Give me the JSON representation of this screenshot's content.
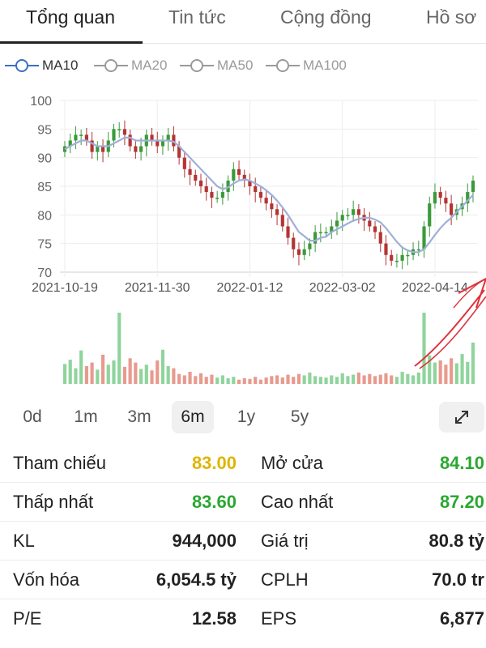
{
  "tabs": [
    {
      "label": "Tổng quan",
      "active": true
    },
    {
      "label": "Tin tức",
      "active": false
    },
    {
      "label": "Cộng đồng",
      "active": false
    },
    {
      "label": "Hồ sơ",
      "active": false
    }
  ],
  "ma_legend": [
    {
      "label": "MA10",
      "active": true
    },
    {
      "label": "MA20",
      "active": false
    },
    {
      "label": "MA50",
      "active": false
    },
    {
      "label": "MA100",
      "active": false
    }
  ],
  "colors": {
    "up": "#3a9a3a",
    "down": "#b43434",
    "ma_line": "#9fb0d8",
    "vol_up": "#8fd49c",
    "vol_down": "#e89a8e",
    "annotation": "#e0313a",
    "ma_active": "#3b6fc4",
    "ma_inactive": "#9a9a9a"
  },
  "chart_data": {
    "type": "candlestick",
    "y_ticks": [
      "100",
      "95",
      "90",
      "85",
      "80",
      "75",
      "70"
    ],
    "ylim": [
      70,
      100
    ],
    "x_ticks": [
      "2021-10-19",
      "2021-11-30",
      "2022-01-12",
      "2022-03-02",
      "2022-04-14"
    ],
    "close_series": [
      92,
      93,
      94,
      94,
      93,
      91,
      92,
      91,
      93,
      95,
      95,
      94,
      92,
      91,
      92,
      94,
      93,
      92,
      93,
      94,
      92,
      90,
      88,
      87,
      86,
      85,
      84,
      83,
      83,
      84,
      86,
      88,
      87,
      86,
      85,
      84,
      83,
      82,
      81,
      80,
      78,
      76,
      74,
      73,
      74,
      75,
      77,
      77,
      77,
      78,
      79,
      80,
      80,
      81,
      80,
      79,
      78,
      77,
      75,
      73,
      72,
      72,
      73,
      73,
      74,
      74,
      78,
      82,
      84,
      83,
      82,
      80,
      81,
      82,
      84,
      86
    ],
    "ma10_series": [
      91.5,
      92,
      92.5,
      93,
      93,
      92.5,
      92,
      92,
      92,
      92.5,
      93,
      93.5,
      93.5,
      93,
      93,
      93,
      93,
      93,
      93,
      93,
      92.8,
      92,
      91,
      90,
      89,
      88,
      87,
      86,
      85,
      84.5,
      84.8,
      85.5,
      86,
      86.2,
      86,
      85.5,
      85,
      84.3,
      83.5,
      82.5,
      81.3,
      80,
      78.5,
      77,
      76.3,
      75.5,
      75.5,
      76,
      76.2,
      77,
      77.5,
      78,
      78.5,
      79,
      79.3,
      79.5,
      79.5,
      79.2,
      78.7,
      77.7,
      76.5,
      75.3,
      74.3,
      73.8,
      73.5,
      73.5,
      74,
      75.2,
      76.5,
      77.7,
      78.7,
      79.5,
      80.5,
      81.5,
      82.5,
      83.5
    ],
    "volume_series": [
      0.28,
      0.34,
      0.22,
      0.47,
      0.25,
      0.3,
      0.2,
      0.41,
      0.27,
      0.33,
      1.0,
      0.24,
      0.36,
      0.3,
      0.21,
      0.27,
      0.19,
      0.33,
      0.48,
      0.25,
      0.22,
      0.14,
      0.12,
      0.17,
      0.11,
      0.15,
      0.1,
      0.13,
      0.09,
      0.12,
      0.08,
      0.1,
      0.06,
      0.08,
      0.07,
      0.1,
      0.06,
      0.09,
      0.11,
      0.12,
      0.09,
      0.13,
      0.1,
      0.14,
      0.12,
      0.16,
      0.11,
      0.1,
      0.09,
      0.12,
      0.1,
      0.15,
      0.11,
      0.13,
      0.16,
      0.12,
      0.14,
      0.11,
      0.13,
      0.15,
      0.12,
      0.1,
      0.17,
      0.14,
      0.12,
      0.16,
      1.0,
      0.4,
      0.3,
      0.33,
      0.27,
      0.36,
      0.29,
      0.42,
      0.31,
      0.58
    ]
  },
  "periods": [
    {
      "label": "0d",
      "active": false
    },
    {
      "label": "1m",
      "active": false
    },
    {
      "label": "3m",
      "active": false
    },
    {
      "label": "6m",
      "active": true
    },
    {
      "label": "1y",
      "active": false
    },
    {
      "label": "5y",
      "active": false
    }
  ],
  "stats": [
    {
      "left": {
        "label": "Tham chiếu",
        "value": "83.00",
        "tone": "yellow"
      },
      "right": {
        "label": "Mở cửa",
        "value": "84.10",
        "tone": "green"
      }
    },
    {
      "left": {
        "label": "Thấp nhất",
        "value": "83.60",
        "tone": "green"
      },
      "right": {
        "label": "Cao nhất",
        "value": "87.20",
        "tone": "green"
      }
    },
    {
      "left": {
        "label": "KL",
        "value": "944,000",
        "tone": "normal"
      },
      "right": {
        "label": "Giá trị",
        "value": "80.8 tỷ",
        "tone": "normal"
      }
    },
    {
      "left": {
        "label": "Vốn hóa",
        "value": "6,054.5 tỷ",
        "tone": "normal"
      },
      "right": {
        "label": "CPLH",
        "value": "70.0 tr",
        "tone": "normal"
      }
    },
    {
      "left": {
        "label": "P/E",
        "value": "12.58",
        "tone": "normal"
      },
      "right": {
        "label": "EPS",
        "value": "6,877",
        "tone": "normal"
      }
    }
  ]
}
